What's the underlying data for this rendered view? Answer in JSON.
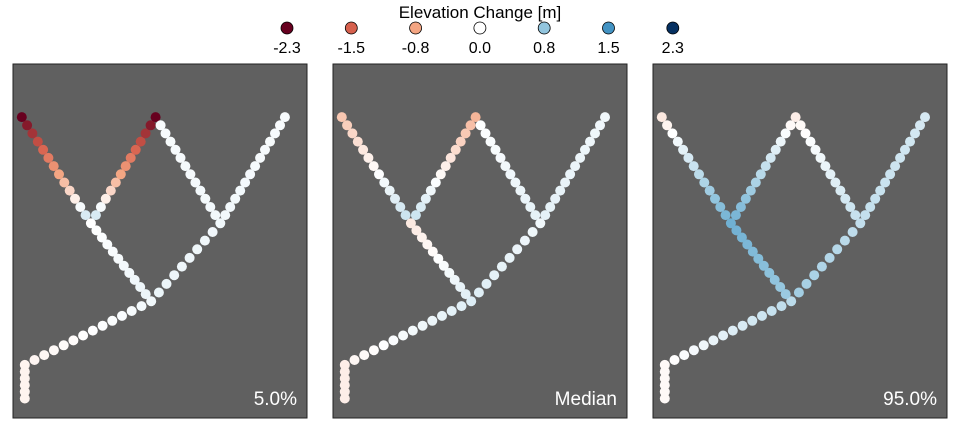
{
  "legend": {
    "title": "Elevation Change [m]",
    "entries": [
      {
        "label": "-2.3",
        "value": -2.3,
        "color": "#67001f"
      },
      {
        "label": "-1.5",
        "value": -1.5,
        "color": "#d6604d"
      },
      {
        "label": "-0.8",
        "value": -0.8,
        "color": "#f4a582"
      },
      {
        "label": "0.0",
        "value": 0.0,
        "color": "#ffffff"
      },
      {
        "label": "0.8",
        "value": 0.8,
        "color": "#92c5de"
      },
      {
        "label": "1.5",
        "value": 1.5,
        "color": "#4393c3"
      },
      {
        "label": "2.3",
        "value": 2.3,
        "color": "#053061"
      }
    ]
  },
  "colors": {
    "panel_background": "#606060",
    "panel_border": "#222222",
    "panel_label_text": "#ffffff",
    "colormap": "RdBu diverging"
  },
  "chart_data": {
    "type": "scatter",
    "description_units": "panel coordinates 0-100 (x left→right, y bottom→top); color = elevation change [m]",
    "panels": [
      {
        "label": "5.0%",
        "statistic": "5th percentile"
      },
      {
        "label": "Median",
        "statistic": "median"
      },
      {
        "label": "95.0%",
        "statistic": "95th percentile"
      }
    ],
    "network_nodes": {
      "inlet": [
        4.0,
        5.5
      ],
      "bend": [
        4.0,
        15.0
      ],
      "fork": [
        47.0,
        33.0
      ],
      "left_junction": [
        26.5,
        55.0
      ],
      "right_junction": [
        70.5,
        55.0
      ],
      "top_left": [
        3.0,
        85.0
      ],
      "top_mid": [
        48.5,
        85.0
      ],
      "top_right": [
        92.5,
        85.0
      ]
    },
    "segments": [
      {
        "name": "inlet-stem",
        "from": "inlet",
        "to": "bend",
        "points": 6
      },
      {
        "name": "lower-trunk",
        "from": "bend",
        "to": "fork",
        "points": 14
      },
      {
        "name": "fork-left",
        "from": "fork",
        "to": "left_junction",
        "points": 12
      },
      {
        "name": "fork-right",
        "from": "fork",
        "to": "right_junction",
        "points": 10
      },
      {
        "name": "left-to-topleft",
        "from": "left_junction",
        "to": "top_left",
        "points": 14
      },
      {
        "name": "left-to-topmid",
        "from": "left_junction",
        "to": "top_mid",
        "points": 14
      },
      {
        "name": "right-to-topmid",
        "from": "right_junction",
        "to": "top_mid",
        "points": 14
      },
      {
        "name": "right-to-topright",
        "from": "right_junction",
        "to": "top_right",
        "points": 14
      }
    ],
    "values": [
      {
        "label": "5.0%",
        "segments": {
          "inlet-stem": [
            -0.1,
            -0.1
          ],
          "lower-trunk": [
            -0.1,
            0.1
          ],
          "fork-left": [
            0.15,
            0.0
          ],
          "fork-right": [
            0.15,
            0.1
          ],
          "left-to-topleft": [
            0.5,
            -2.3
          ],
          "left-to-topmid": [
            0.5,
            -2.3
          ],
          "right-to-topmid": [
            0.1,
            0.05
          ],
          "right-to-topright": [
            0.1,
            0.05
          ]
        }
      },
      {
        "label": "Median",
        "segments": {
          "inlet-stem": [
            -0.15,
            -0.15
          ],
          "lower-trunk": [
            -0.1,
            0.25
          ],
          "fork-left": [
            0.25,
            -0.2
          ],
          "fork-right": [
            0.25,
            0.1
          ],
          "left-to-topleft": [
            0.45,
            -0.5
          ],
          "left-to-topmid": [
            0.45,
            -0.65
          ],
          "right-to-topmid": [
            0.2,
            0.0
          ],
          "right-to-topright": [
            0.2,
            0.1
          ]
        }
      },
      {
        "label": "95.0%",
        "segments": {
          "inlet-stem": [
            -0.05,
            -0.05
          ],
          "lower-trunk": [
            -0.05,
            0.5
          ],
          "fork-left": [
            0.7,
            1.1
          ],
          "fork-right": [
            0.7,
            0.45
          ],
          "left-to-topleft": [
            1.1,
            -0.2
          ],
          "left-to-topmid": [
            1.1,
            -0.15
          ],
          "right-to-topmid": [
            0.45,
            -0.1
          ],
          "right-to-topright": [
            0.45,
            0.3
          ]
        }
      }
    ],
    "value_range": [
      -2.3,
      2.3
    ],
    "grid": false,
    "legend_position": "top-center"
  }
}
